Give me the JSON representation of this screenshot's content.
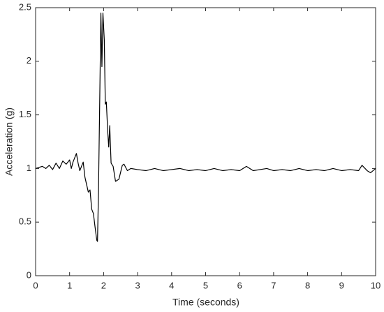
{
  "chart_data": {
    "type": "line",
    "xlabel": "Time (seconds)",
    "ylabel": "Acceleration (g)",
    "x": [
      0,
      0.1,
      0.2,
      0.3,
      0.4,
      0.5,
      0.6,
      0.7,
      0.8,
      0.9,
      1.0,
      1.05,
      1.1,
      1.2,
      1.25,
      1.3,
      1.4,
      1.45,
      1.5,
      1.55,
      1.6,
      1.65,
      1.7,
      1.75,
      1.8,
      1.82,
      1.85,
      1.88,
      1.92,
      1.95,
      1.98,
      2.02,
      2.05,
      2.08,
      2.12,
      2.15,
      2.18,
      2.22,
      2.28,
      2.35,
      2.45,
      2.55,
      2.6,
      2.7,
      2.8,
      3.0,
      3.25,
      3.5,
      3.75,
      4.0,
      4.25,
      4.5,
      4.75,
      5.0,
      5.25,
      5.5,
      5.75,
      6.0,
      6.2,
      6.4,
      6.6,
      6.8,
      7.0,
      7.25,
      7.5,
      7.75,
      8.0,
      8.25,
      8.5,
      8.75,
      9.0,
      9.25,
      9.5,
      9.6,
      9.75,
      9.85,
      10.0
    ],
    "values": [
      1.0,
      1.01,
      1.02,
      1.0,
      1.03,
      0.99,
      1.05,
      1.0,
      1.07,
      1.04,
      1.08,
      1.0,
      1.06,
      1.14,
      1.05,
      0.98,
      1.06,
      0.92,
      0.85,
      0.78,
      0.8,
      0.62,
      0.58,
      0.45,
      0.33,
      0.32,
      0.8,
      1.5,
      2.45,
      1.95,
      2.45,
      2.2,
      1.6,
      1.62,
      1.35,
      1.2,
      1.4,
      1.05,
      1.02,
      0.88,
      0.9,
      1.03,
      1.04,
      0.98,
      1.0,
      0.99,
      0.98,
      1.0,
      0.98,
      0.99,
      1.0,
      0.98,
      0.99,
      0.98,
      1.0,
      0.98,
      0.99,
      0.98,
      1.02,
      0.98,
      0.99,
      1.0,
      0.98,
      0.99,
      0.98,
      1.0,
      0.98,
      0.99,
      0.98,
      1.0,
      0.98,
      0.99,
      0.98,
      1.03,
      0.98,
      0.96,
      1.0
    ],
    "color": "#000000",
    "xlim": [
      0,
      10
    ],
    "xticks": [
      0,
      1,
      2,
      3,
      4,
      5,
      6,
      7,
      8,
      9,
      10
    ],
    "ylim": [
      0,
      2.5
    ],
    "yticks": [
      0,
      0.5,
      1,
      1.5,
      2,
      2.5
    ]
  }
}
